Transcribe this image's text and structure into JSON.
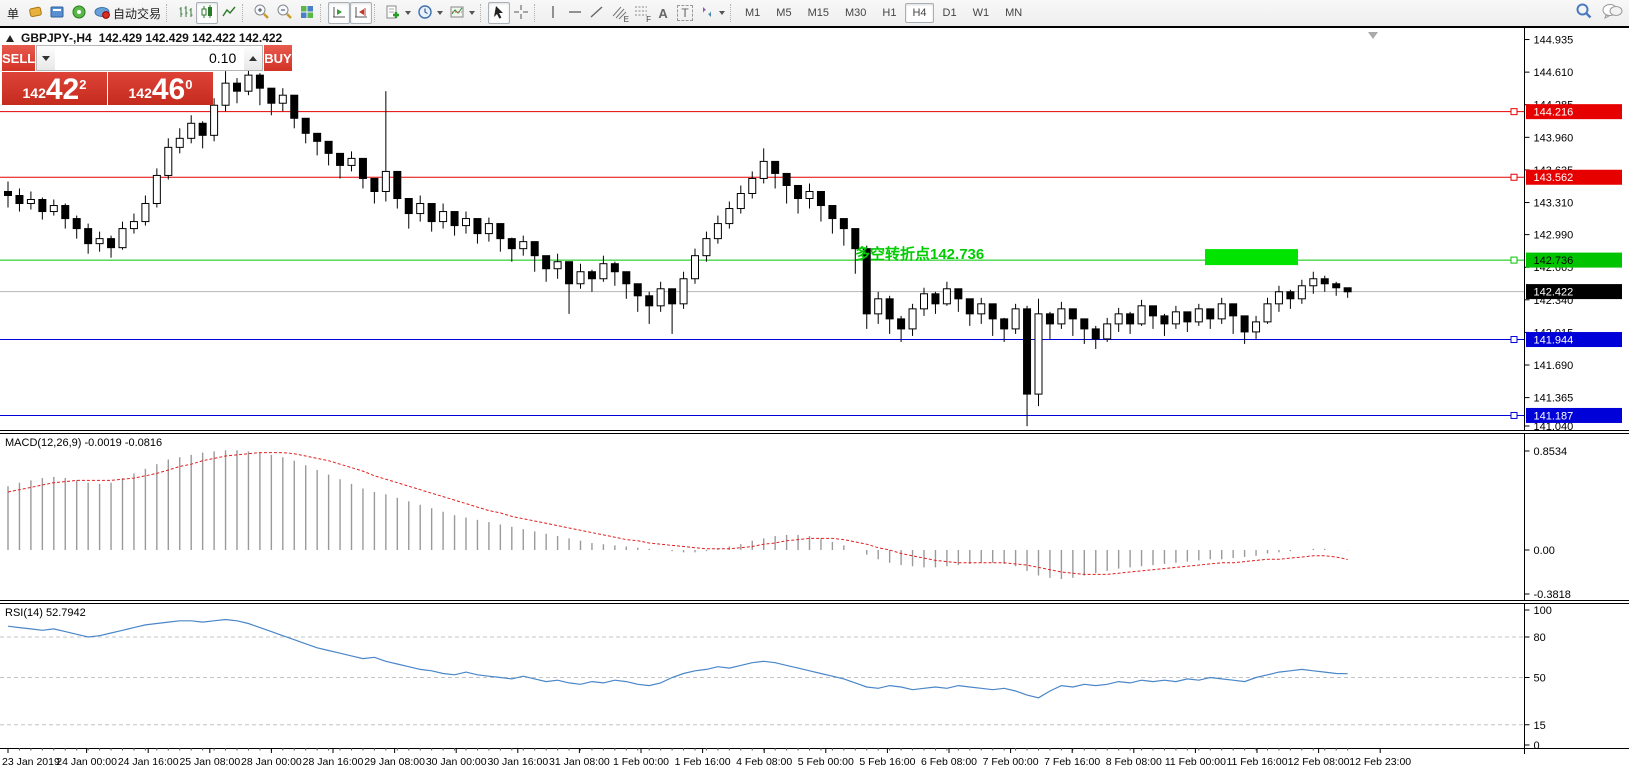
{
  "toolbar": {
    "new_order_label": "单",
    "autotrading_label": "自动交易",
    "tools": {
      "channel_sub": "E",
      "fibo_sub": "F",
      "text_tool": "A",
      "label_tool": "T"
    },
    "timeframes": [
      "M1",
      "M5",
      "M15",
      "M30",
      "H1",
      "H4",
      "D1",
      "W1",
      "MN"
    ],
    "active_timeframe": "H4"
  },
  "chart_header": {
    "symbol": "GBPJPY-,H4",
    "quotes": "142.429 142.429 142.422 142.422"
  },
  "trade_panel": {
    "sell_label": "SELL",
    "buy_label": "BUY",
    "volume": "0.10",
    "sell_price": {
      "small": "142",
      "big": "42",
      "sup": "2"
    },
    "buy_price": {
      "small": "142",
      "big": "46",
      "sup": "0"
    }
  },
  "indicators": {
    "macd": "MACD(12,26,9) -0.0019 -0.0816",
    "rsi": "RSI(14) 52.7942"
  },
  "annotation": {
    "text": "多空转折点142.736",
    "color": "#00cc00"
  },
  "colors": {
    "bull": "#ffffff",
    "bear": "#000000",
    "wick": "#000000",
    "red_level": "#e60000",
    "green_level": "#00c400",
    "blue_level": "#0000d8",
    "current_line": "#b4b4b4",
    "current_label_bg": "#000000",
    "macd_hist": "#9a9a9a",
    "macd_signal": "#e02020",
    "rsi_line": "#4a86c8",
    "highlight_green": "#00e400",
    "panel_red": "#d8382e"
  },
  "price_axis": {
    "ticks": [
      "144.935",
      "144.610",
      "144.285",
      "143.960",
      "143.635",
      "143.310",
      "142.990",
      "142.665",
      "142.340",
      "142.015",
      "141.690",
      "141.365",
      "141.040"
    ],
    "tick_values": [
      144.935,
      144.61,
      144.285,
      143.96,
      143.635,
      143.31,
      142.99,
      142.665,
      142.34,
      142.015,
      141.69,
      141.365,
      141.04
    ]
  },
  "levels": [
    {
      "label": "144.216",
      "price": 144.216,
      "color": "#e60000",
      "text_color": "#ffffff"
    },
    {
      "label": "143.562",
      "price": 143.562,
      "color": "#e60000",
      "text_color": "#ffffff"
    },
    {
      "label": "142.736",
      "price": 142.736,
      "color": "#00c400",
      "text_color": "#000000"
    },
    {
      "label": "141.944",
      "price": 141.944,
      "color": "#0000d8",
      "text_color": "#ffffff"
    },
    {
      "label": "141.187",
      "price": 141.187,
      "color": "#0000d8",
      "text_color": "#ffffff"
    }
  ],
  "current_price": {
    "label": "142.422",
    "price": 142.422
  },
  "highlight_box": {
    "x": 1205,
    "width": 93,
    "price": 142.736
  },
  "time_axis": [
    "23 Jan 2019",
    "24 Jan 00:00",
    "24 Jan 16:00",
    "25 Jan 08:00",
    "28 Jan 00:00",
    "28 Jan 16:00",
    "29 Jan 08:00",
    "30 Jan 00:00",
    "30 Jan 16:00",
    "31 Jan 08:00",
    "1 Feb 00:00",
    "1 Feb 16:00",
    "4 Feb 08:00",
    "5 Feb 00:00",
    "5 Feb 16:00",
    "6 Feb 08:00",
    "7 Feb 00:00",
    "7 Feb 16:00",
    "8 Feb 08:00",
    "11 Feb 00:00",
    "11 Feb 16:00",
    "12 Feb 08:00",
    "12 Feb 23:00"
  ],
  "chart_data": [
    {
      "type": "candlestick",
      "symbol": "GBPJPY",
      "timeframe": "H4",
      "title": "GBPJPY-,H4 142.429 142.429 142.422 142.422",
      "ylim": [
        141.04,
        144.935
      ],
      "first_open": 143.42,
      "closes": [
        143.38,
        143.3,
        143.34,
        143.22,
        143.28,
        143.15,
        143.05,
        142.9,
        142.95,
        142.86,
        143.05,
        143.12,
        143.3,
        143.58,
        143.86,
        143.95,
        144.1,
        143.98,
        144.28,
        144.5,
        144.42,
        144.58,
        144.45,
        144.3,
        144.38,
        144.15,
        144.0,
        143.92,
        143.8,
        143.68,
        143.75,
        143.55,
        143.42,
        143.62,
        143.35,
        143.2,
        143.3,
        143.12,
        143.22,
        143.08,
        143.15,
        143.0,
        143.1,
        142.95,
        142.85,
        142.92,
        142.78,
        142.65,
        142.72,
        142.5,
        142.62,
        142.55,
        142.7,
        142.62,
        142.5,
        142.38,
        142.28,
        142.45,
        142.3,
        142.55,
        142.78,
        142.95,
        143.1,
        143.25,
        143.4,
        143.55,
        143.72,
        143.6,
        143.48,
        143.35,
        143.42,
        143.28,
        143.15,
        143.05,
        142.85,
        142.2,
        142.35,
        142.15,
        142.05,
        142.25,
        142.4,
        142.3,
        142.45,
        142.35,
        142.2,
        142.3,
        142.15,
        142.05,
        142.25,
        141.4,
        142.2,
        142.1,
        142.25,
        142.15,
        142.05,
        141.95,
        142.1,
        142.2,
        142.1,
        142.28,
        142.18,
        142.1,
        142.22,
        142.12,
        142.25,
        142.15,
        142.3,
        142.18,
        142.02,
        142.12,
        142.3,
        142.42,
        142.35,
        142.48,
        142.55,
        142.5,
        142.46,
        142.42
      ],
      "highs": [
        143.52,
        143.45,
        143.42,
        143.36,
        143.34,
        143.3,
        143.18,
        143.1,
        143.02,
        142.98,
        143.12,
        143.2,
        143.38,
        143.65,
        143.95,
        144.05,
        144.18,
        144.12,
        144.35,
        144.62,
        144.55,
        144.7,
        144.6,
        144.42,
        144.45,
        144.3,
        144.12,
        144.0,
        143.9,
        143.8,
        143.82,
        143.68,
        143.55,
        144.42,
        143.6,
        143.35,
        143.38,
        143.26,
        143.3,
        143.2,
        143.22,
        143.12,
        143.16,
        143.06,
        142.96,
        142.98,
        142.9,
        142.78,
        142.8,
        142.68,
        142.7,
        142.64,
        142.78,
        142.72,
        142.62,
        142.5,
        142.42,
        142.52,
        142.44,
        142.62,
        142.85,
        143.02,
        143.18,
        143.32,
        143.48,
        143.62,
        143.85,
        143.72,
        143.58,
        143.46,
        143.5,
        143.38,
        143.26,
        143.14,
        142.95,
        142.88,
        142.42,
        142.38,
        142.18,
        142.3,
        142.46,
        142.42,
        142.52,
        142.44,
        142.32,
        142.36,
        142.28,
        142.16,
        142.3,
        142.28,
        142.35,
        142.22,
        142.32,
        142.25,
        142.15,
        142.08,
        142.16,
        142.26,
        142.22,
        142.34,
        142.28,
        142.2,
        142.28,
        142.2,
        142.3,
        142.24,
        142.36,
        142.26,
        142.14,
        142.18,
        142.36,
        142.48,
        142.44,
        142.54,
        142.62,
        142.58,
        142.52,
        142.46
      ],
      "lows": [
        143.26,
        143.22,
        143.24,
        143.14,
        143.18,
        143.05,
        142.95,
        142.8,
        142.82,
        142.76,
        142.84,
        143.0,
        143.08,
        143.26,
        143.54,
        143.8,
        143.9,
        143.85,
        143.92,
        144.22,
        144.3,
        144.38,
        144.28,
        144.18,
        144.22,
        144.05,
        143.9,
        143.78,
        143.68,
        143.55,
        143.62,
        143.45,
        143.3,
        143.32,
        143.25,
        143.05,
        143.12,
        143.02,
        143.05,
        142.98,
        143.0,
        142.9,
        142.92,
        142.82,
        142.72,
        142.78,
        142.62,
        142.52,
        142.55,
        142.2,
        142.45,
        142.42,
        142.52,
        142.48,
        142.35,
        142.22,
        142.1,
        142.22,
        142.0,
        142.25,
        142.5,
        142.72,
        142.9,
        143.05,
        143.2,
        143.35,
        143.5,
        143.45,
        143.3,
        143.2,
        143.25,
        143.12,
        143.0,
        142.88,
        142.6,
        142.05,
        142.1,
        142.0,
        141.92,
        141.98,
        142.18,
        142.2,
        142.28,
        142.22,
        142.08,
        142.1,
        141.98,
        141.92,
        142.0,
        141.08,
        141.28,
        141.95,
        142.05,
        141.98,
        141.9,
        141.85,
        141.92,
        142.02,
        142.0,
        142.08,
        142.05,
        141.98,
        142.05,
        142.02,
        142.08,
        142.05,
        142.1,
        142.0,
        141.9,
        141.95,
        142.1,
        142.22,
        142.25,
        142.3,
        142.4,
        142.42,
        142.38,
        142.36
      ]
    },
    {
      "type": "bar+line",
      "name": "MACD(12,26,9)",
      "current_values": [
        -0.0019,
        -0.0816
      ],
      "y_ticks": [
        "0.8534",
        "0.00",
        "-0.3818"
      ],
      "y_tick_values": [
        0.8534,
        0,
        -0.3818
      ],
      "macd": [
        0.55,
        0.58,
        0.6,
        0.62,
        0.63,
        0.62,
        0.6,
        0.58,
        0.57,
        0.58,
        0.62,
        0.66,
        0.7,
        0.74,
        0.78,
        0.8,
        0.82,
        0.84,
        0.85,
        0.86,
        0.86,
        0.85,
        0.84,
        0.82,
        0.8,
        0.77,
        0.73,
        0.69,
        0.65,
        0.61,
        0.57,
        0.53,
        0.5,
        0.48,
        0.45,
        0.42,
        0.39,
        0.36,
        0.33,
        0.3,
        0.28,
        0.26,
        0.24,
        0.22,
        0.2,
        0.18,
        0.16,
        0.14,
        0.12,
        0.1,
        0.08,
        0.06,
        0.05,
        0.04,
        0.03,
        0.02,
        0.01,
        0.0,
        -0.01,
        -0.02,
        -0.02,
        -0.01,
        0.01,
        0.03,
        0.05,
        0.08,
        0.1,
        0.12,
        0.13,
        0.13,
        0.12,
        0.1,
        0.07,
        0.04,
        0.0,
        -0.04,
        -0.08,
        -0.11,
        -0.13,
        -0.14,
        -0.15,
        -0.15,
        -0.14,
        -0.13,
        -0.12,
        -0.11,
        -0.11,
        -0.12,
        -0.14,
        -0.18,
        -0.22,
        -0.24,
        -0.25,
        -0.24,
        -0.22,
        -0.2,
        -0.18,
        -0.16,
        -0.15,
        -0.14,
        -0.13,
        -0.12,
        -0.11,
        -0.1,
        -0.09,
        -0.08,
        -0.08,
        -0.07,
        -0.06,
        -0.05,
        -0.03,
        -0.02,
        -0.01,
        0.0,
        0.01,
        0.01,
        0.0,
        -0.0019
      ],
      "signal": [
        0.5,
        0.52,
        0.54,
        0.56,
        0.58,
        0.59,
        0.6,
        0.6,
        0.6,
        0.6,
        0.61,
        0.62,
        0.64,
        0.66,
        0.69,
        0.72,
        0.74,
        0.77,
        0.79,
        0.81,
        0.82,
        0.83,
        0.84,
        0.84,
        0.84,
        0.83,
        0.81,
        0.79,
        0.77,
        0.74,
        0.71,
        0.68,
        0.64,
        0.61,
        0.58,
        0.55,
        0.52,
        0.49,
        0.46,
        0.43,
        0.4,
        0.37,
        0.34,
        0.32,
        0.29,
        0.27,
        0.25,
        0.23,
        0.21,
        0.19,
        0.17,
        0.15,
        0.13,
        0.11,
        0.09,
        0.08,
        0.06,
        0.05,
        0.04,
        0.03,
        0.02,
        0.01,
        0.01,
        0.01,
        0.02,
        0.03,
        0.05,
        0.06,
        0.08,
        0.09,
        0.1,
        0.1,
        0.1,
        0.09,
        0.07,
        0.05,
        0.02,
        0.0,
        -0.03,
        -0.05,
        -0.07,
        -0.09,
        -0.1,
        -0.11,
        -0.11,
        -0.11,
        -0.11,
        -0.11,
        -0.12,
        -0.13,
        -0.15,
        -0.17,
        -0.19,
        -0.2,
        -0.21,
        -0.21,
        -0.21,
        -0.2,
        -0.19,
        -0.18,
        -0.17,
        -0.16,
        -0.15,
        -0.14,
        -0.13,
        -0.12,
        -0.11,
        -0.11,
        -0.1,
        -0.09,
        -0.08,
        -0.08,
        -0.07,
        -0.06,
        -0.05,
        -0.05,
        -0.06,
        -0.0816
      ]
    },
    {
      "type": "line",
      "name": "RSI(14)",
      "current_value": 52.7942,
      "levels": [
        80,
        50,
        15
      ],
      "y_ticks": [
        "100",
        "80",
        "50",
        "15",
        "0"
      ],
      "y_tick_values": [
        100,
        80,
        50,
        15,
        0
      ],
      "values": [
        88,
        87,
        86,
        85,
        86,
        84,
        82,
        80,
        81,
        83,
        85,
        87,
        89,
        90,
        91,
        92,
        92,
        91,
        92,
        93,
        92,
        90,
        87,
        84,
        81,
        78,
        75,
        72,
        70,
        68,
        66,
        64,
        65,
        62,
        60,
        58,
        56,
        55,
        53,
        52,
        54,
        52,
        51,
        50,
        49,
        51,
        49,
        47,
        48,
        46,
        45,
        47,
        46,
        48,
        47,
        45,
        44,
        46,
        50,
        53,
        55,
        56,
        58,
        57,
        59,
        61,
        62,
        61,
        59,
        57,
        55,
        53,
        51,
        49,
        46,
        43,
        42,
        44,
        43,
        41,
        42,
        43,
        42,
        44,
        43,
        42,
        41,
        42,
        40,
        37,
        35,
        40,
        44,
        43,
        45,
        44,
        45,
        47,
        46,
        48,
        47,
        48,
        47,
        49,
        48,
        50,
        49,
        48,
        47,
        50,
        52,
        54,
        55,
        56,
        55,
        54,
        53,
        52.79
      ]
    }
  ]
}
